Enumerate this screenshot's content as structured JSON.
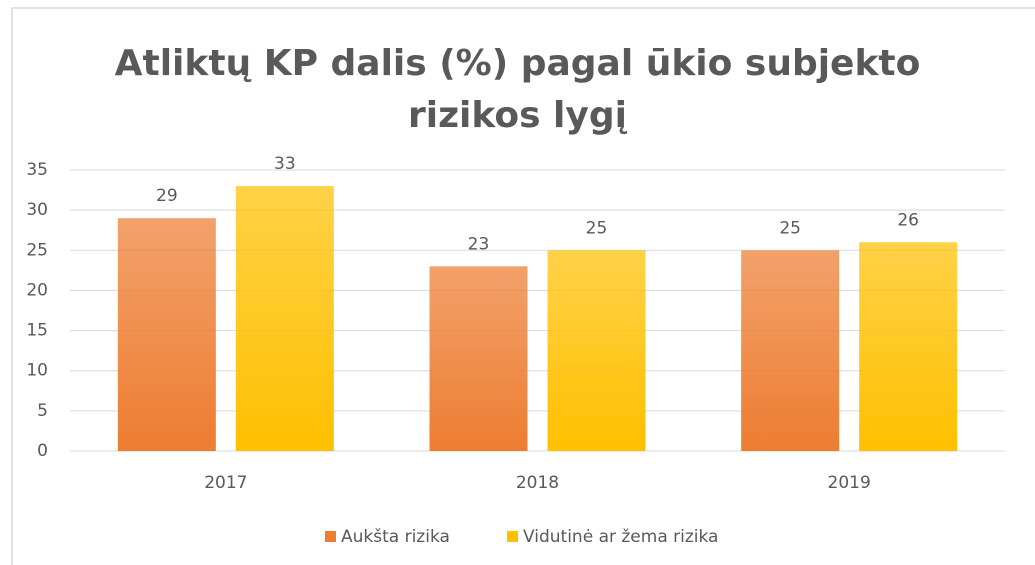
{
  "chart_data": {
    "type": "bar",
    "title": "Atliktų KP dalis (%) pagal ūkio subjekto rizikos lygį",
    "categories": [
      "2017",
      "2018",
      "2019"
    ],
    "series": [
      {
        "name": "Aukšta rizika",
        "color": "#ed7d31",
        "values": [
          29,
          23,
          25
        ]
      },
      {
        "name": "Vidutinė ar žema rizika",
        "color": "#ffc000",
        "values": [
          33,
          25,
          26
        ]
      }
    ],
    "ylim": [
      0,
      35
    ],
    "yticks": [
      0,
      5,
      10,
      15,
      20,
      25,
      30,
      35
    ],
    "grid": true,
    "legend": "bottom"
  }
}
